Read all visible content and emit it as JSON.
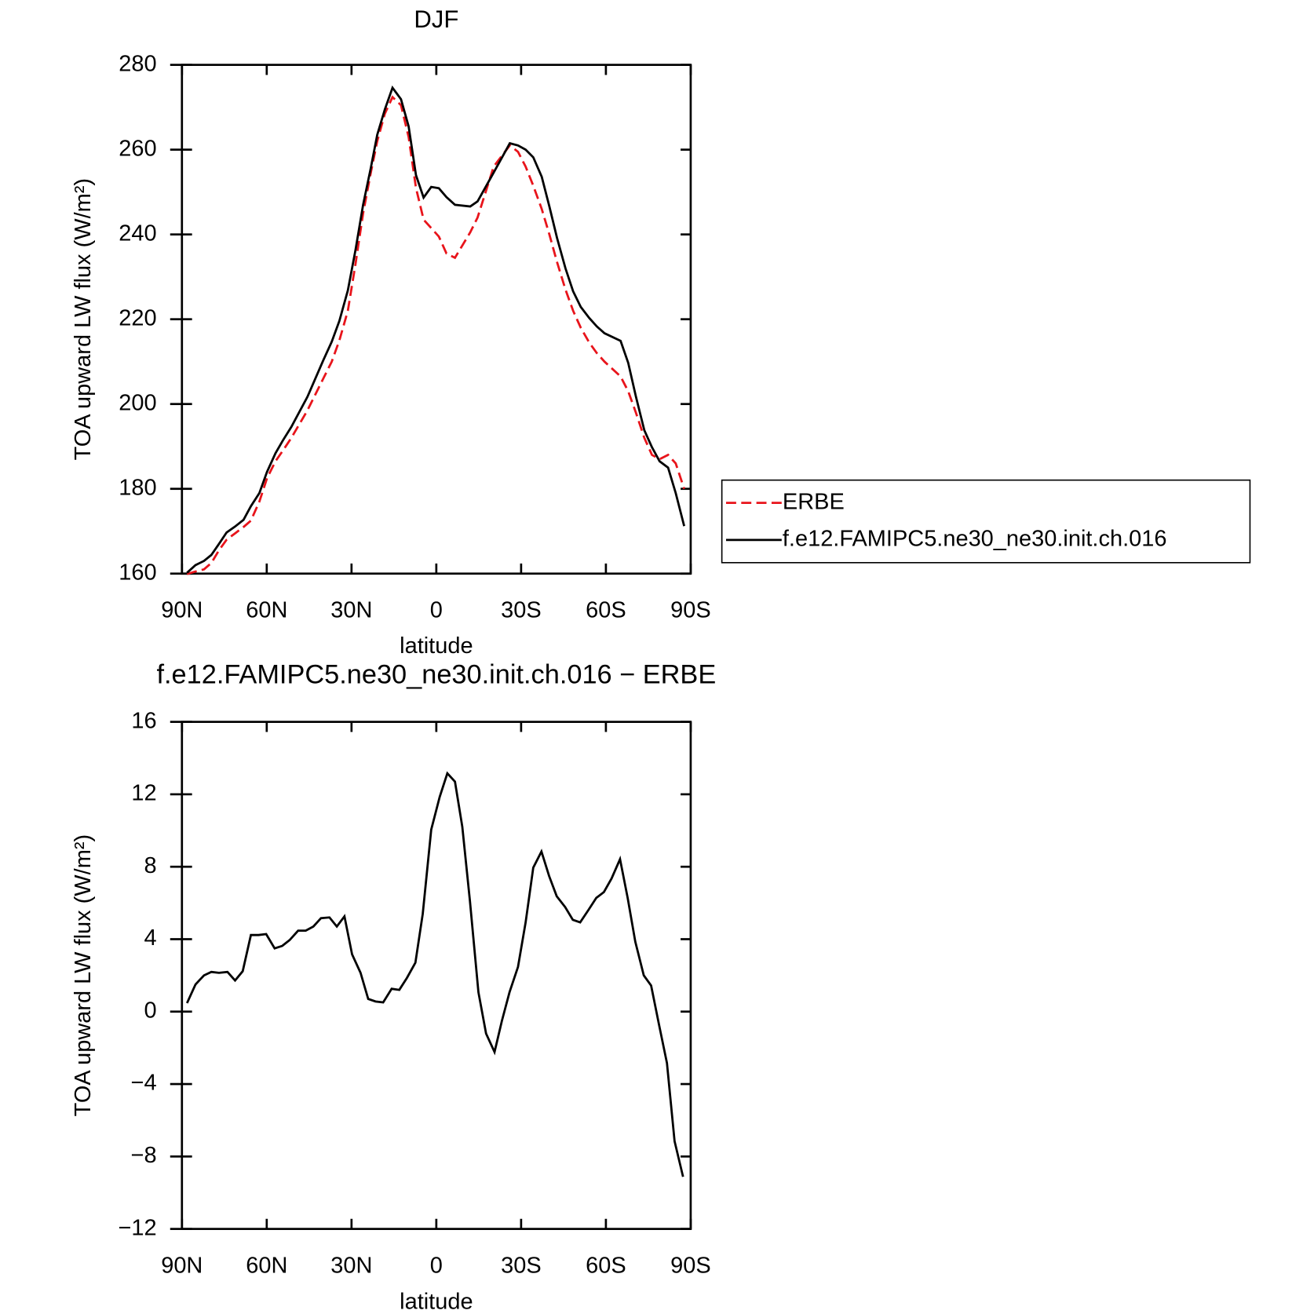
{
  "chart_data": [
    {
      "type": "line",
      "title": "DJF",
      "xlabel": "latitude",
      "ylabel": "TOA upward LW flux (W/m²)",
      "x": [
        -88.2,
        -85.2,
        -82.2,
        -79.6,
        -76.9,
        -74.2,
        -71.2,
        -68.2,
        -65.6,
        -62.6,
        -59.9,
        -56.9,
        -54.3,
        -51.3,
        -45.6,
        -40,
        -37,
        -34.3,
        -31.3,
        -28.6,
        -25.9,
        -23.2,
        -20.9,
        -18.2,
        -15.5,
        -12.5,
        -9.8,
        -7.2,
        -4.5,
        -1.8,
        0.9,
        3.6,
        6.6,
        12,
        14.6,
        20.3,
        26,
        28.9,
        31.6,
        34.3,
        37.3,
        40,
        42.7,
        45.7,
        48.4,
        51.1,
        54.1,
        56.8,
        59.5,
        65.2,
        67.9,
        70.6,
        73.6,
        76.3,
        79,
        82,
        84.7,
        87.7
      ],
      "series": [
        {
          "name": "ERBE",
          "color": "#e8141b",
          "linestyle": "dashed",
          "values": [
            159.9,
            160.5,
            161,
            162.5,
            165.5,
            168,
            169.5,
            171,
            172.5,
            177,
            182.5,
            186.5,
            189,
            192,
            198.5,
            206,
            210,
            215,
            222,
            233,
            245,
            254.5,
            262,
            268.5,
            272.4,
            270.5,
            263,
            251,
            243.5,
            241.5,
            239.5,
            235.5,
            234.5,
            240.5,
            244,
            256,
            261,
            259.5,
            256,
            251.5,
            246,
            240,
            233.5,
            227,
            222,
            218,
            214.5,
            212,
            210,
            206.5,
            203,
            198,
            192,
            188,
            187,
            188,
            186,
            180
          ]
        },
        {
          "name": "f.e12.FAMIPC5.ne30_ne30.init.ch.016",
          "color": "#000000",
          "linestyle": "solid",
          "values": [
            160.2,
            162,
            163,
            164.4,
            167,
            169.7,
            171.1,
            172.7,
            175.9,
            179,
            184,
            188.4,
            191.4,
            194.6,
            201.7,
            210.3,
            214.7,
            219.6,
            226.8,
            236.3,
            247,
            255.6,
            263.5,
            269.5,
            274.6,
            271.9,
            265.5,
            254,
            248.7,
            251.2,
            250.9,
            248.8,
            247,
            246.6,
            247.8,
            254.6,
            261.5,
            261,
            260,
            258.2,
            253.6,
            246.6,
            239.2,
            232,
            226.6,
            222.9,
            220.3,
            218.3,
            216.7,
            214.9,
            209.7,
            201.8,
            193.8,
            189.8,
            186.5,
            185,
            179,
            171.2
          ]
        }
      ],
      "xlim": [
        -90,
        90
      ],
      "ylim": [
        160,
        280
      ],
      "xticks": [
        {
          "value": -90,
          "label": "90N"
        },
        {
          "value": -60,
          "label": "60N"
        },
        {
          "value": -30,
          "label": "30N"
        },
        0,
        {
          "value": 30,
          "label": "30S"
        },
        {
          "value": 60,
          "label": "60S"
        },
        {
          "value": 90,
          "label": "90S"
        }
      ],
      "yticks": [
        160,
        180,
        200,
        220,
        240,
        260,
        280
      ],
      "legend": "right-outside"
    },
    {
      "type": "line",
      "title": "f.e12.FAMIPC5.ne30_ne30.init.ch.016 − ERBE",
      "xlabel": "latitude",
      "ylabel": "TOA upward LW flux (W/m²)",
      "x": [
        -88.2,
        -85.2,
        -82.2,
        -79.6,
        -76.9,
        -73.9,
        -71.2,
        -68.5,
        -65.6,
        -62.9,
        -60.2,
        -57.2,
        -54.5,
        -51.9,
        -48.9,
        -46.2,
        -43.5,
        -40.8,
        -37.8,
        -35.2,
        -32.5,
        -29.8,
        -26.8,
        -24.1,
        -21.5,
        -18.8,
        -15.8,
        -13.1,
        -10.4,
        -7.4,
        -4.8,
        -1.8,
        1.2,
        3.9,
        6.6,
        9.2,
        11.9,
        14.9,
        17.6,
        20.6,
        23.2,
        25.9,
        28.9,
        31.6,
        34.3,
        37.2,
        39.9,
        42.6,
        45.6,
        48.3,
        50.9,
        53.9,
        56.6,
        59.3,
        62,
        65,
        67.7,
        70.4,
        73.4,
        76,
        78.7,
        81.6,
        84.3,
        87.3
      ],
      "series": [
        {
          "color": "#000000",
          "linestyle": "solid",
          "values": [
            0.47,
            1.5,
            2.0,
            2.19,
            2.14,
            2.19,
            1.72,
            2.23,
            4.23,
            4.23,
            4.28,
            3.49,
            3.63,
            3.95,
            4.47,
            4.47,
            4.7,
            5.16,
            5.2,
            4.7,
            5.26,
            3.16,
            2.14,
            0.7,
            0.56,
            0.51,
            1.26,
            1.2,
            1.86,
            2.7,
            5.4,
            10.05,
            11.86,
            13.16,
            12.7,
            10.2,
            6.1,
            1.07,
            -1.21,
            -2.23,
            -0.51,
            1.07,
            2.47,
            4.93,
            7.95,
            8.84,
            7.49,
            6.37,
            5.77,
            5.07,
            4.93,
            5.63,
            6.28,
            6.6,
            7.35,
            8.42,
            6.28,
            3.86,
            2,
            1.44,
            -0.65,
            -2.84,
            -7.16,
            -9.12
          ]
        }
      ],
      "xlim": [
        -90,
        90
      ],
      "ylim": [
        -12,
        16
      ],
      "xticks": [
        {
          "value": -90,
          "label": "90N"
        },
        {
          "value": -60,
          "label": "60N"
        },
        {
          "value": -30,
          "label": "30N"
        },
        0,
        {
          "value": 30,
          "label": "30S"
        },
        {
          "value": 60,
          "label": "60S"
        },
        {
          "value": 90,
          "label": "90S"
        }
      ],
      "yticks": [
        {
          "value": -12,
          "label": "−12"
        },
        {
          "value": -8,
          "label": "−8"
        },
        {
          "value": -4,
          "label": "−4"
        },
        0,
        4,
        8,
        12,
        16
      ],
      "legend": false
    }
  ]
}
